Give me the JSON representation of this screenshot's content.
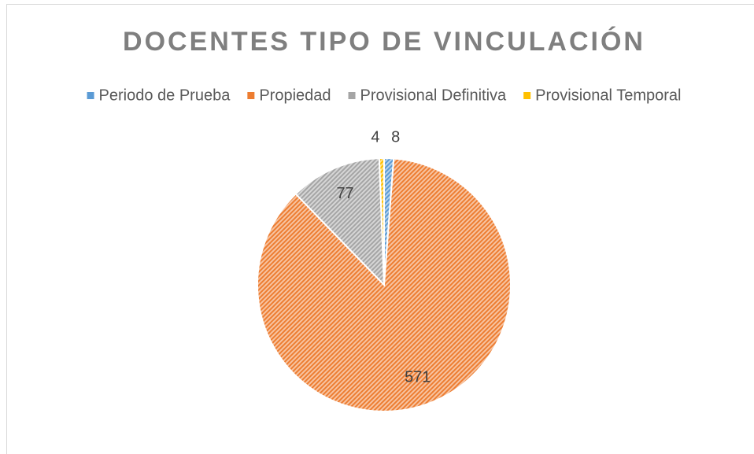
{
  "chart_data": {
    "type": "pie",
    "title": "DOCENTES TIPO DE VINCULACIÓN",
    "series": [
      {
        "name": "Periodo de Prueba",
        "color": "#5b9bd5",
        "values": [
          8
        ]
      },
      {
        "name": "Propiedad",
        "color": "#ed7d31",
        "values": [
          571
        ]
      },
      {
        "name": "Provisional Definitiva",
        "color": "#a5a5a5",
        "values": [
          77
        ]
      },
      {
        "name": "Provisional Temporal",
        "color": "#ffc000",
        "values": [
          4
        ]
      }
    ],
    "legend": "top"
  }
}
